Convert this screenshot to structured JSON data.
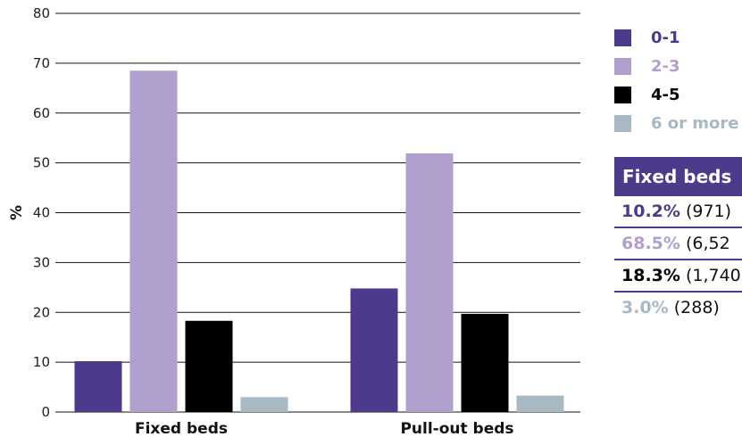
{
  "chart_data": {
    "type": "bar",
    "categories": [
      "Fixed beds",
      "Pull-out beds"
    ],
    "series": [
      {
        "name": "0-1",
        "color": "#4e3a8c",
        "values": [
          10.2,
          24.8
        ]
      },
      {
        "name": "2-3",
        "color": "#b19fcd",
        "values": [
          68.5,
          51.9
        ]
      },
      {
        "name": "4-5",
        "color": "#000000",
        "values": [
          18.3,
          19.7
        ]
      },
      {
        "name": "6 or more",
        "color": "#a9b9c3",
        "values": [
          3.0,
          3.3
        ]
      }
    ],
    "title": "",
    "xlabel": "",
    "ylabel": "%",
    "ylim": [
      0,
      80
    ],
    "yticks": [
      0,
      10,
      20,
      30,
      40,
      50,
      60,
      70,
      80
    ],
    "grid": true,
    "legend": "right"
  },
  "panel": {
    "header": "Fixed beds",
    "rows": [
      {
        "pct": "10.2%",
        "count": "(971)",
        "color": "#4e3a8c"
      },
      {
        "pct": "68.5%",
        "count": "(6,52",
        "color": "#b19fcd"
      },
      {
        "pct": "18.3%",
        "count": "(1,740",
        "color": "#000000"
      },
      {
        "pct": "3.0%",
        "count": "(288)",
        "color": "#a9b9c3"
      }
    ]
  }
}
